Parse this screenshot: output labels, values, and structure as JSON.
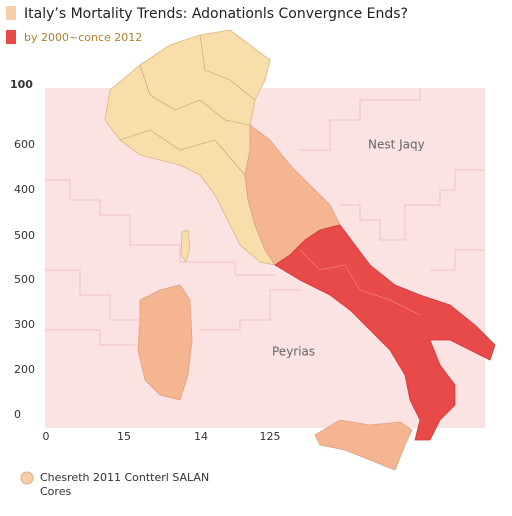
{
  "header": {
    "title": "Italy’s Mortality Trends: Adonationls Convergnce Ends?",
    "subtitle": "by 2000~conce 2012"
  },
  "axis": {
    "y_labels": [
      "100",
      "600",
      "400",
      "500",
      "500",
      "300",
      "200",
      "0"
    ],
    "x_labels": [
      "0",
      "15",
      "14",
      "125"
    ]
  },
  "regions": {
    "north_label": "Nest Jaqy",
    "south_label": "Peyrias"
  },
  "legend": {
    "line1": "Chesreth 2011 Contterl SALAN",
    "line2": "Cores"
  }
}
